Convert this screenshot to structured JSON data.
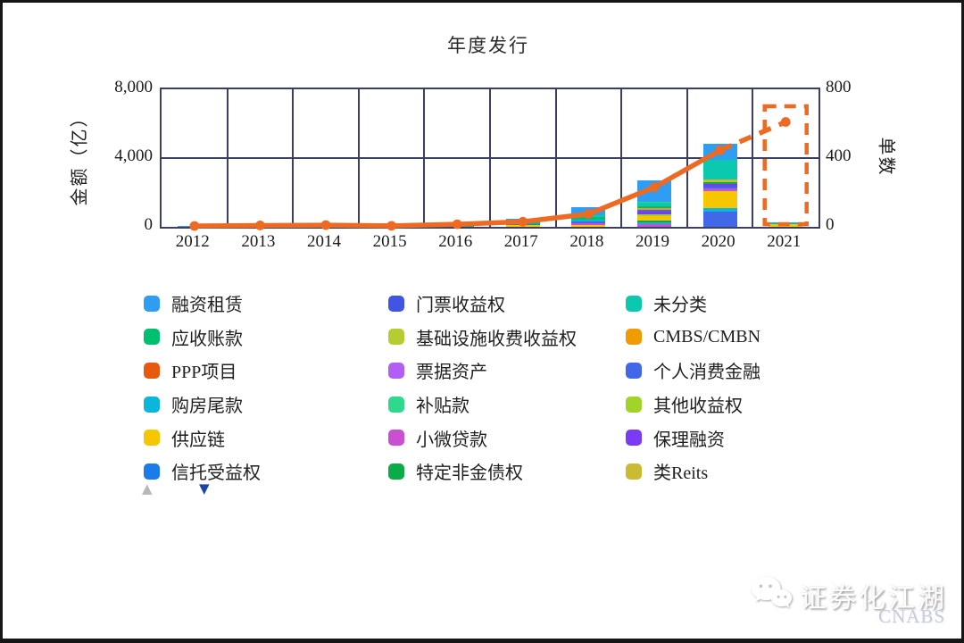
{
  "chart_data": {
    "type": "bar",
    "subtype": "stacked-bar-with-line",
    "title": "年度发行",
    "categories": [
      "2012",
      "2013",
      "2014",
      "2015",
      "2016",
      "2017",
      "2018",
      "2019",
      "2020",
      "2021"
    ],
    "left_axis": {
      "label": "金额（亿）",
      "ticks": [
        "8,000",
        "4,000",
        "0"
      ],
      "min": 0,
      "max": 8000
    },
    "right_axis": {
      "label": "单数",
      "ticks": [
        "800",
        "400",
        "0"
      ],
      "min": 0,
      "max": 800
    },
    "grid": {
      "vertical_category_dividers": true,
      "horizontal_lines_at": [
        4000
      ]
    },
    "bars": [
      {
        "category": "2012",
        "segments": [
          {
            "label": "融资租赁",
            "color": "#2f9ef2",
            "value": 20
          }
        ]
      },
      {
        "category": "2013",
        "segments": [
          {
            "label": "融资租赁",
            "color": "#2f9ef2",
            "value": 30
          }
        ]
      },
      {
        "category": "2014",
        "segments": [
          {
            "label": "信托受益权",
            "color": "#1b7ce9",
            "value": 15
          },
          {
            "label": "融资租赁",
            "color": "#2f9ef2",
            "value": 25
          }
        ]
      },
      {
        "category": "2015",
        "segments": [
          {
            "label": "应收账款",
            "color": "#00bf6f",
            "value": 18
          },
          {
            "label": "融资租赁",
            "color": "#2f9ef2",
            "value": 25
          }
        ]
      },
      {
        "category": "2016",
        "segments": [
          {
            "label": "应收账款",
            "color": "#00bf6f",
            "value": 60
          },
          {
            "label": "未分类",
            "color": "#0bc9af",
            "value": 60
          },
          {
            "label": "融资租赁",
            "color": "#2f9ef2",
            "value": 60
          }
        ]
      },
      {
        "category": "2017",
        "segments": [
          {
            "label": "供应链",
            "color": "#f6c700",
            "value": 90
          },
          {
            "label": "信托受益权",
            "color": "#1b7ce9",
            "value": 80
          },
          {
            "label": "应收账款",
            "color": "#00bf6f",
            "value": 120
          },
          {
            "label": "未分类",
            "color": "#0bc9af",
            "value": 90
          },
          {
            "label": "融资租赁",
            "color": "#2f9ef2",
            "value": 90
          }
        ]
      },
      {
        "category": "2018",
        "segments": [
          {
            "label": "供应链",
            "color": "#f6c700",
            "value": 130
          },
          {
            "label": "小微贷款",
            "color": "#c94fd3",
            "value": 80
          },
          {
            "label": "个人消费金融",
            "color": "#4168e8",
            "value": 90
          },
          {
            "label": "购房尾款",
            "color": "#0cb5dc",
            "value": 110
          },
          {
            "label": "应收账款",
            "color": "#00bf6f",
            "value": 140
          },
          {
            "label": "未分类",
            "color": "#0bc9af",
            "value": 130
          },
          {
            "label": "融资租赁",
            "color": "#2f9ef2",
            "value": 450
          }
        ]
      },
      {
        "category": "2019",
        "segments": [
          {
            "label": "小微贷款",
            "color": "#c94fd3",
            "value": 180
          },
          {
            "label": "购房尾款",
            "color": "#0cb5dc",
            "value": 90
          },
          {
            "label": "特定非金债权",
            "color": "#0bab47",
            "value": 110
          },
          {
            "label": "供应链",
            "color": "#f6c700",
            "value": 250
          },
          {
            "label": "其他收益权",
            "color": "#a2d32a",
            "value": 100
          },
          {
            "label": "保理融资",
            "color": "#7b3bf2",
            "value": 130
          },
          {
            "label": "个人消费金融",
            "color": "#4168e8",
            "value": 140
          },
          {
            "label": "CMBS/CMBN",
            "color": "#f09c00",
            "value": 90
          },
          {
            "label": "应收账款",
            "color": "#00bf6f",
            "value": 120
          },
          {
            "label": "未分类",
            "color": "#0bc9af",
            "value": 170
          },
          {
            "label": "补贴款",
            "color": "#2fd98c",
            "value": 90
          },
          {
            "label": "融资租赁",
            "color": "#2f9ef2",
            "value": 1230
          }
        ]
      },
      {
        "category": "2020",
        "segments": [
          {
            "label": "个人消费金融",
            "color": "#4168e8",
            "value": 900
          },
          {
            "label": "购房尾款",
            "color": "#0cb5dc",
            "value": 190
          },
          {
            "label": "供应链",
            "color": "#f6c700",
            "value": 990
          },
          {
            "label": "小微贷款",
            "color": "#c94fd3",
            "value": 135
          },
          {
            "label": "信托受益权",
            "color": "#1b7ce9",
            "value": 135
          },
          {
            "label": "保理融资",
            "color": "#7b3bf2",
            "value": 135
          },
          {
            "label": "特定非金债权",
            "color": "#0bab47",
            "value": 135
          },
          {
            "label": "类Reits",
            "color": "#c9bc33",
            "value": 140
          },
          {
            "label": "未分类",
            "color": "#0bc9af",
            "value": 1160
          },
          {
            "label": "融资租赁",
            "color": "#2f9ef2",
            "value": 930
          }
        ]
      },
      {
        "category": "2021",
        "segments": [
          {
            "label": "供应链",
            "color": "#f6c700",
            "value": 170
          },
          {
            "label": "购房尾款",
            "color": "#0cb5dc",
            "value": 90
          }
        ]
      }
    ],
    "line": {
      "name": "单数",
      "color": "#ee6a22",
      "values": [
        5,
        8,
        10,
        6,
        15,
        30,
        75,
        230,
        445,
        610
      ],
      "dashed_from_index": 8,
      "marker": "circle"
    },
    "highlight": {
      "category": "2021",
      "style": "dashed-box",
      "color": "#ee6a22"
    }
  },
  "legend": {
    "columns": [
      [
        {
          "label": "融资租赁",
          "color": "#2f9ef2"
        },
        {
          "label": "应收账款",
          "color": "#00bf6f"
        },
        {
          "label": "PPP项目",
          "color": "#e7590d"
        },
        {
          "label": "购房尾款",
          "color": "#0cb5dc"
        },
        {
          "label": "供应链",
          "color": "#f6c700"
        },
        {
          "label": "信托受益权",
          "color": "#1b7ce9"
        }
      ],
      [
        {
          "label": "门票收益权",
          "color": "#4155e2"
        },
        {
          "label": "基础设施收费收益权",
          "color": "#b6cc30"
        },
        {
          "label": "票据资产",
          "color": "#b25ef5"
        },
        {
          "label": "补贴款",
          "color": "#2fd98c"
        },
        {
          "label": "小微贷款",
          "color": "#c94fd3"
        },
        {
          "label": "特定非金债权",
          "color": "#0bab47"
        }
      ],
      [
        {
          "label": "未分类",
          "color": "#0bc9af"
        },
        {
          "label": "CMBS/CMBN",
          "color": "#f09c00"
        },
        {
          "label": "个人消费金融",
          "color": "#4168e8"
        },
        {
          "label": "其他收益权",
          "color": "#a2d32a"
        },
        {
          "label": "保理融资",
          "color": "#7b3bf2"
        },
        {
          "label": "类Reits",
          "color": "#c9bc33"
        }
      ]
    ]
  },
  "controls": {
    "scroll_up_icon": "▲",
    "scroll_up_color": "#b8b8b8",
    "scroll_down_icon": "▼",
    "scroll_down_color": "#1d43a6"
  },
  "watermark": {
    "brand": "证券化江湖",
    "logo_text": "CNABS"
  }
}
